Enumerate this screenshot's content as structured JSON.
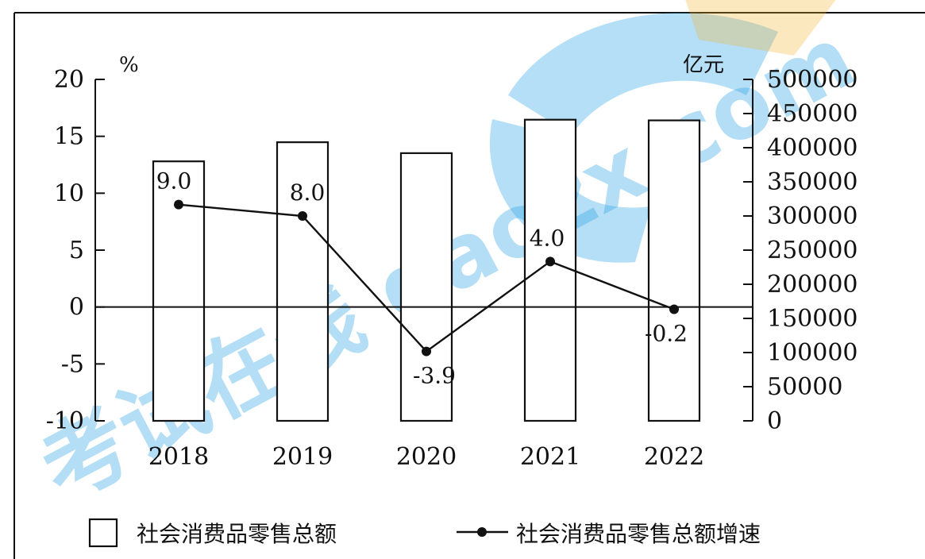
{
  "chart_data": {
    "type": "bar+line",
    "categories": [
      "2018",
      "2019",
      "2020",
      "2021",
      "2022"
    ],
    "series": [
      {
        "name": "社会消费品零售总额",
        "type": "bar",
        "axis": "right",
        "values": [
          380000,
          408000,
          392000,
          441000,
          440000
        ]
      },
      {
        "name": "社会消费品零售总额增速",
        "type": "line",
        "axis": "left",
        "values": [
          9.0,
          8.0,
          -3.9,
          4.0,
          -0.2
        ],
        "labels": [
          "9.0",
          "8.0",
          "-3.9",
          "4.0",
          "-0.2"
        ]
      }
    ],
    "y_left": {
      "unit": "%",
      "ylim": [
        -10,
        20
      ],
      "ticks": [
        20,
        15,
        10,
        5,
        0,
        -5,
        -10
      ],
      "tick_labels": [
        "20",
        "15",
        "10",
        "5",
        "0",
        "-5",
        "-10"
      ]
    },
    "y_right": {
      "unit": "亿元",
      "ylim": [
        0,
        500000
      ],
      "ticks": [
        500000,
        450000,
        400000,
        350000,
        300000,
        250000,
        200000,
        150000,
        100000,
        50000,
        0
      ],
      "tick_labels": [
        "500000",
        "450000",
        "400000",
        "350000",
        "300000",
        "250000",
        "200000",
        "150000",
        "100000",
        "50000",
        "0"
      ]
    },
    "zero_line": true,
    "grid": false,
    "legend_position": "bottom",
    "legend": [
      "社会消费品零售总额",
      "社会消费品零售总额增速"
    ]
  },
  "watermark": {
    "text": "考试在线 gaozx.com",
    "colors": [
      "#2aa2e4",
      "#f5b42c"
    ]
  }
}
